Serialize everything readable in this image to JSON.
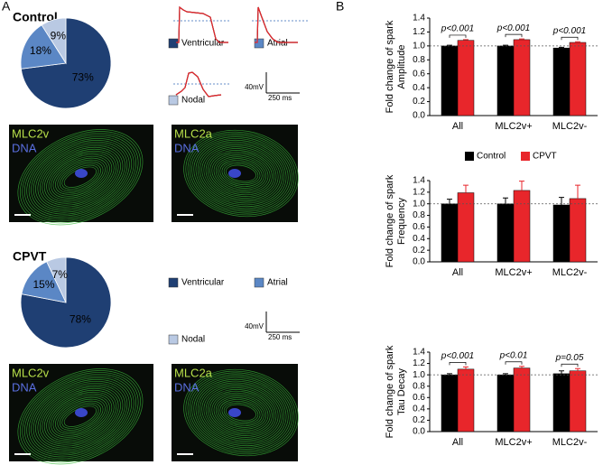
{
  "figure": {
    "panel_labels": [
      "A",
      "B"
    ],
    "rows": [
      {
        "scale_voltage": "40mV",
        "scale_time": "250 ms",
        "images": [
          [
            "MLC2v",
            "DNA"
          ],
          [
            "MLC2a",
            "DNA"
          ]
        ]
      },
      {
        "scale_voltage": "40mV",
        "scale_time": "250 ms",
        "images": [
          [
            "MLC2v",
            "DNA"
          ],
          [
            "MLC2a",
            "DNA"
          ]
        ]
      }
    ]
  },
  "chart_data": [
    {
      "type": "pie",
      "title": "Control",
      "title_color": "#000000",
      "trace_color": "#000000",
      "categories": [
        "Ventricular",
        "Atrial",
        "Nodal"
      ],
      "values": [
        73,
        18,
        9
      ],
      "value_labels": [
        "73%",
        "18%",
        "9%"
      ],
      "colors": [
        "#1f3f73",
        "#5b87c5",
        "#b9c9e3"
      ]
    },
    {
      "type": "pie",
      "title": "CPVT",
      "title_color": "#e8262b",
      "trace_color": "#e8262b",
      "categories": [
        "Ventricular",
        "Atrial",
        "Nodal"
      ],
      "values": [
        78,
        15,
        7
      ],
      "value_labels": [
        "78%",
        "15%",
        "7%"
      ],
      "colors": [
        "#1f3f73",
        "#5b87c5",
        "#b9c9e3"
      ]
    },
    {
      "type": "bar",
      "y_label": "Fold change of spark Amplitude",
      "categories": [
        "All",
        "MLC2v+",
        "MLC2v-"
      ],
      "series": [
        {
          "name": "Control",
          "color": "#000000",
          "values": [
            1.0,
            1.0,
            0.97
          ],
          "errors": [
            0.01,
            0.01,
            0.01
          ]
        },
        {
          "name": "CPVT",
          "color": "#e8262b",
          "values": [
            1.08,
            1.09,
            1.05
          ],
          "errors": [
            0.01,
            0.01,
            0.01
          ]
        }
      ],
      "annotations": [
        "p<0.001",
        "p<0.001",
        "p<0.001"
      ],
      "reference_line": 1.0,
      "ylim": [
        0,
        1.4
      ],
      "yticks": [
        {
          "value": 0,
          "label": "0.0"
        },
        {
          "value": 0.2,
          "label": "0.2"
        },
        {
          "value": 0.4,
          "label": "0.4"
        },
        {
          "value": 0.6,
          "label": "0.6"
        },
        {
          "value": 0.8,
          "label": "0.8"
        },
        {
          "value": 1.0,
          "label": "1.0"
        },
        {
          "value": 1.2,
          "label": "1.2"
        },
        {
          "value": 1.4,
          "label": "1.4"
        }
      ],
      "legend": false
    },
    {
      "type": "bar",
      "y_label": "Fold change of spark Frequency",
      "categories": [
        "All",
        "MLC2v+",
        "MLC2v-"
      ],
      "series": [
        {
          "name": "Control",
          "color": "#000000",
          "values": [
            1.0,
            1.0,
            0.98
          ],
          "errors": [
            0.08,
            0.1,
            0.13
          ]
        },
        {
          "name": "CPVT",
          "color": "#e8262b",
          "values": [
            1.19,
            1.23,
            1.09
          ],
          "errors": [
            0.13,
            0.16,
            0.23
          ]
        }
      ],
      "reference_line": 1.0,
      "ylim": [
        0,
        1.4
      ],
      "yticks": [
        {
          "value": 0,
          "label": "0.0"
        },
        {
          "value": 0.2,
          "label": "0.2"
        },
        {
          "value": 0.4,
          "label": "0.4"
        },
        {
          "value": 0.6,
          "label": "0.6"
        },
        {
          "value": 0.8,
          "label": "0.8"
        },
        {
          "value": 1.0,
          "label": "1.0"
        },
        {
          "value": 1.2,
          "label": "1.2"
        },
        {
          "value": 1.4,
          "label": "1.4"
        }
      ],
      "legend": true
    },
    {
      "type": "bar",
      "y_label": "Fold change of spark Tau Decay",
      "categories": [
        "All",
        "MLC2v+",
        "MLC2v-"
      ],
      "series": [
        {
          "name": "Control",
          "color": "#000000",
          "values": [
            1.0,
            1.0,
            1.02
          ],
          "errors": [
            0.02,
            0.02,
            0.05
          ]
        },
        {
          "name": "CPVT",
          "color": "#e8262b",
          "values": [
            1.1,
            1.12,
            1.07
          ],
          "errors": [
            0.04,
            0.03,
            0.04
          ]
        }
      ],
      "annotations": [
        "p<0.001",
        "p<0.01",
        "p=0.05"
      ],
      "reference_line": 1.0,
      "ylim": [
        0,
        1.4
      ],
      "yticks": [
        {
          "value": 0,
          "label": "0.0"
        },
        {
          "value": 0.2,
          "label": "0.2"
        },
        {
          "value": 0.4,
          "label": "0.4"
        },
        {
          "value": 0.6,
          "label": "0.6"
        },
        {
          "value": 0.8,
          "label": "0.8"
        },
        {
          "value": 1.0,
          "label": "1.0"
        },
        {
          "value": 1.2,
          "label": "1.2"
        },
        {
          "value": 1.4,
          "label": "1.4"
        }
      ],
      "legend": false
    }
  ]
}
